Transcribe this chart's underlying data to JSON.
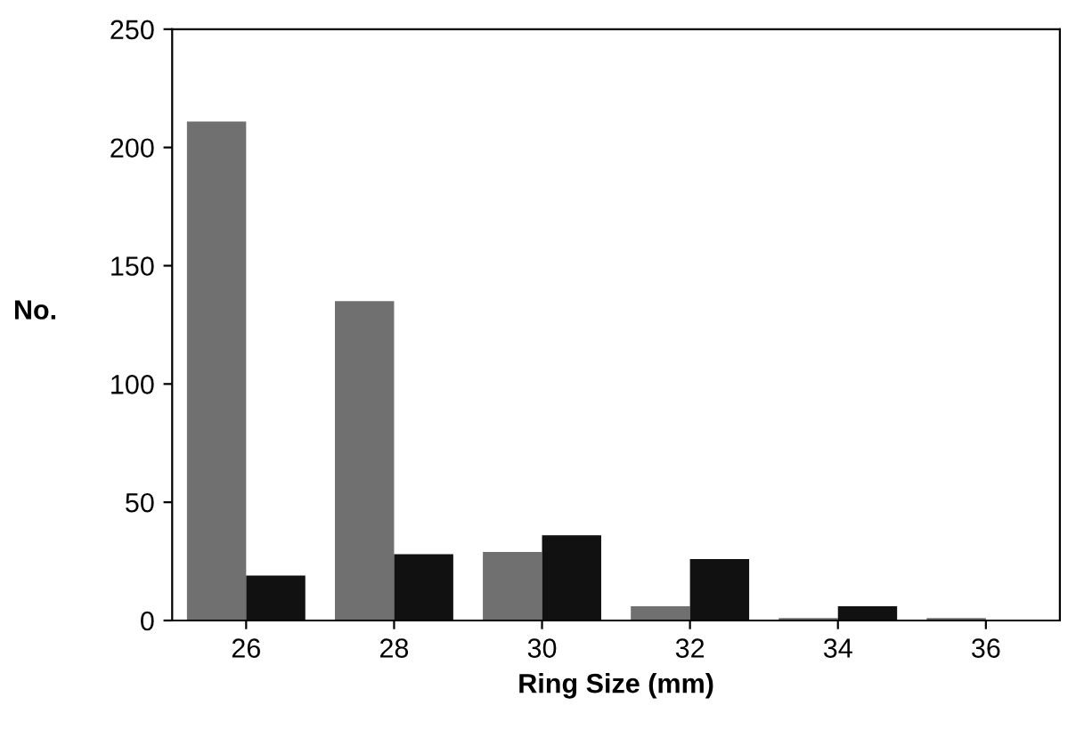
{
  "chart_data": {
    "type": "bar",
    "xlabel": "Ring Size (mm)",
    "ylabel": "No.",
    "categories": [
      "26",
      "28",
      "30",
      "32",
      "34",
      "36"
    ],
    "series": [
      {
        "color": "#707070",
        "values": [
          211,
          135,
          29,
          6,
          1,
          1
        ]
      },
      {
        "color": "#111111",
        "values": [
          19,
          28,
          36,
          26,
          6,
          0
        ]
      }
    ],
    "ylim": [
      0,
      250
    ],
    "yticks": [
      0,
      50,
      100,
      150,
      200,
      250
    ],
    "grid": false
  }
}
